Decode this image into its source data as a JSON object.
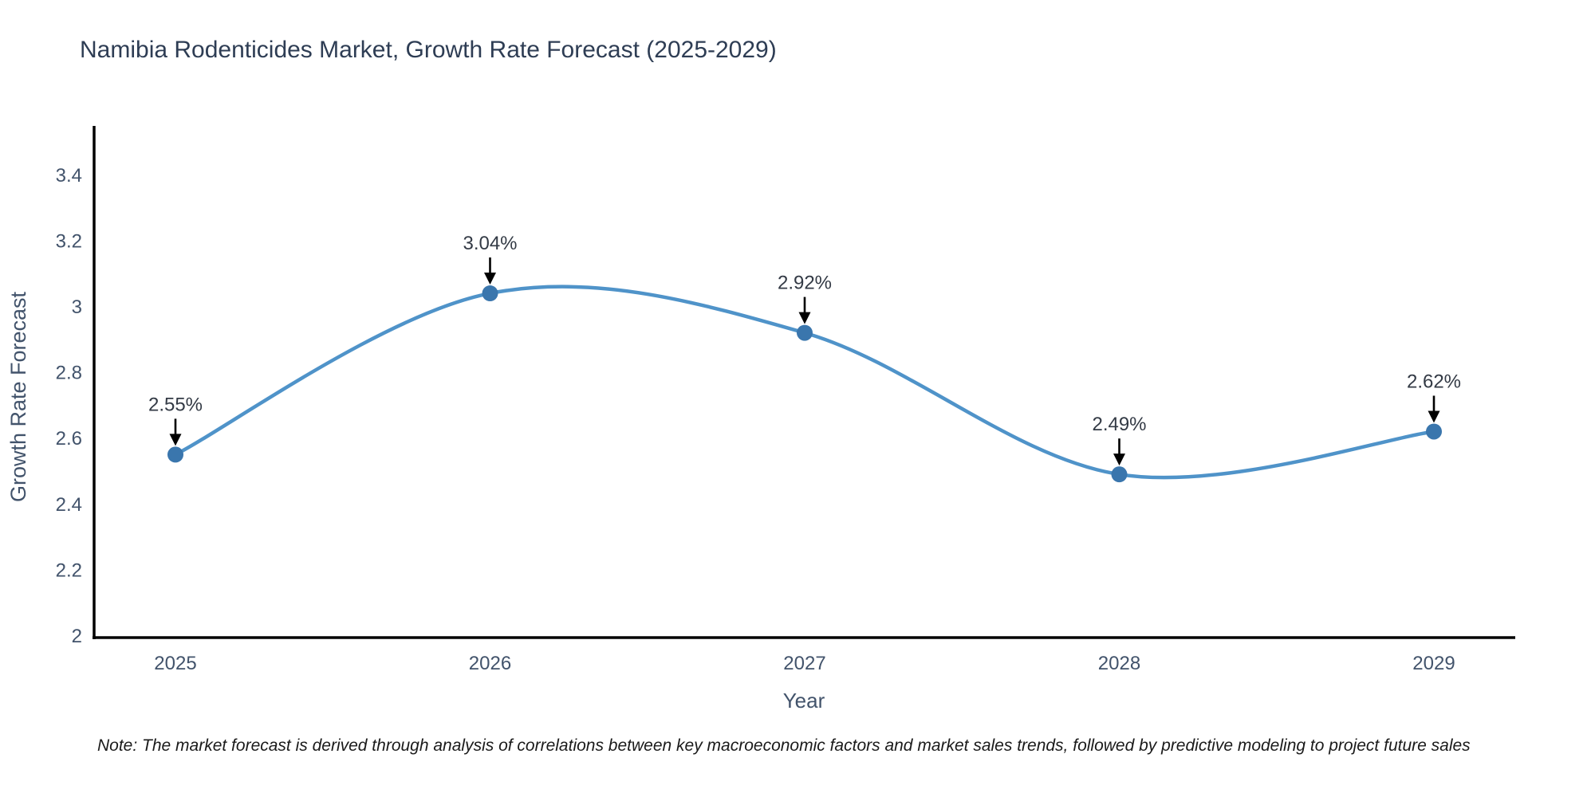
{
  "title": "Namibia Rodenticides Market, Growth Rate Forecast (2025-2029)",
  "note": "Note: The market forecast is derived through analysis of correlations between key macroeconomic factors and market sales trends, followed by predictive modeling to project future sales",
  "chart_data": {
    "type": "line",
    "title": "Namibia Rodenticides Market, Growth Rate Forecast (2025-2029)",
    "xlabel": "Year",
    "ylabel": "Growth Rate Forecast",
    "x": [
      "2025",
      "2026",
      "2027",
      "2028",
      "2029"
    ],
    "values": [
      2.55,
      3.04,
      2.92,
      2.49,
      2.62
    ],
    "point_labels": [
      "2.55%",
      "3.04%",
      "2.92%",
      "2.49%",
      "2.62%"
    ],
    "ylim": [
      2,
      3.4
    ],
    "yticks": [
      2,
      2.2,
      2.4,
      2.6,
      2.8,
      3,
      3.2,
      3.4
    ],
    "ytick_labels": [
      "2",
      "2.2",
      "2.4",
      "2.6",
      "2.8",
      "3",
      "3.2",
      "3.4"
    ],
    "grid": false,
    "legend_position": "none",
    "curve": "smooth-spline",
    "line_color": "#4f93c9",
    "marker_color": "#3a76ad",
    "arrow_color": "#000000",
    "spine_color": "#000000"
  }
}
